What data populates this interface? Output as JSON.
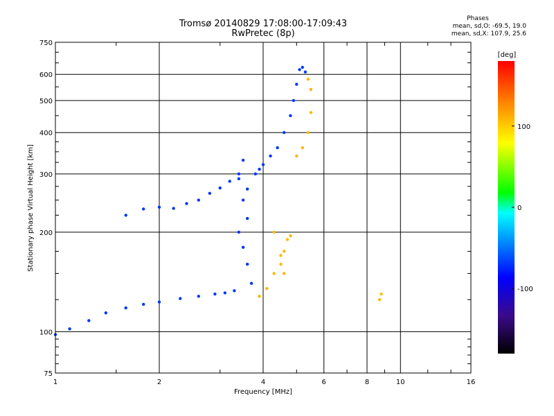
{
  "chart_data": {
    "type": "scatter",
    "title": "Tromsø 20140829 17:08:00-17:09:43",
    "subtitle": "RwPretec (8p)",
    "xlabel": "Frequency [MHz]",
    "ylabel": "Stationary phase Virtual Height [km]",
    "x_scale": "log",
    "y_scale": "log",
    "xlim": [
      1,
      16
    ],
    "ylim": [
      75,
      750
    ],
    "xticks": [
      1,
      2,
      4,
      6,
      8,
      10,
      16
    ],
    "xtick_labels": [
      "1",
      "2",
      "4",
      "6",
      "8",
      "10",
      "16"
    ],
    "yticks": [
      75,
      100,
      200,
      300,
      400,
      500,
      600,
      750
    ],
    "ytick_labels": [
      "75",
      "100",
      "200",
      "300",
      "400",
      "500",
      "600",
      "750"
    ],
    "grid": true,
    "colorbar": {
      "label": "[deg]",
      "range": [
        -180,
        180
      ],
      "ticks": [
        -100,
        0,
        100
      ],
      "tick_labels": [
        "-100",
        "0",
        "100"
      ],
      "colors": [
        "#000000",
        "#3a0a8a",
        "#0000ff",
        "#00a0ff",
        "#00ffff",
        "#00ff00",
        "#ffff00",
        "#ff8c00",
        "#ff0000"
      ]
    },
    "annotation": {
      "title": "Phases",
      "line1": "mean, sd,O: -69.5, 19.0",
      "line2": "mean, sd,X: 107.9, 25.6"
    },
    "series": [
      {
        "name": "O",
        "phase_mean": -69.5,
        "x": [
          1.0,
          1.1,
          1.25,
          1.4,
          1.6,
          1.8,
          2.0,
          2.3,
          2.6,
          2.9,
          3.1,
          3.3,
          3.4,
          3.5,
          3.6,
          3.7,
          3.8,
          3.9,
          4.0,
          4.2,
          4.4,
          4.6,
          4.8,
          4.9,
          5.0,
          5.1,
          5.2,
          5.3,
          1.6,
          1.8,
          2.0,
          2.2,
          2.4,
          2.6,
          2.8,
          3.0,
          3.2,
          3.4,
          3.5,
          3.6,
          3.6,
          3.5,
          3.4
        ],
        "y": [
          98,
          102,
          108,
          114,
          118,
          121,
          123,
          126,
          128,
          130,
          131,
          133,
          200,
          250,
          160,
          140,
          300,
          310,
          320,
          340,
          360,
          400,
          450,
          500,
          560,
          620,
          630,
          610,
          225,
          235,
          238,
          236,
          244,
          250,
          262,
          272,
          285,
          300,
          180,
          220,
          270,
          330,
          290
        ]
      },
      {
        "name": "X",
        "phase_mean": 107.9,
        "x": [
          3.9,
          4.1,
          4.3,
          4.5,
          4.6,
          4.7,
          4.8,
          5.0,
          5.2,
          5.4,
          5.5,
          5.5,
          5.4,
          4.3,
          4.5,
          4.6,
          8.8,
          8.7
        ],
        "y": [
          128,
          135,
          150,
          160,
          175,
          190,
          195,
          340,
          360,
          400,
          460,
          540,
          580,
          200,
          170,
          150,
          130,
          125
        ]
      }
    ]
  }
}
